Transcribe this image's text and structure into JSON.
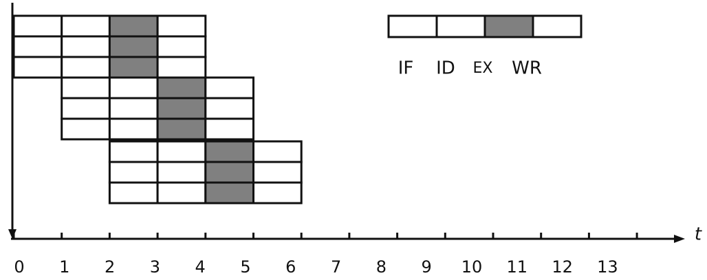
{
  "axis": {
    "label": "t",
    "ticks": [
      "0",
      "1",
      "2",
      "3",
      "4",
      "5",
      "6",
      "7",
      "8",
      "9",
      "10",
      "11",
      "12",
      "13"
    ]
  },
  "legend": {
    "stages": [
      "IF",
      "ID",
      "EX",
      "WR"
    ]
  }
}
